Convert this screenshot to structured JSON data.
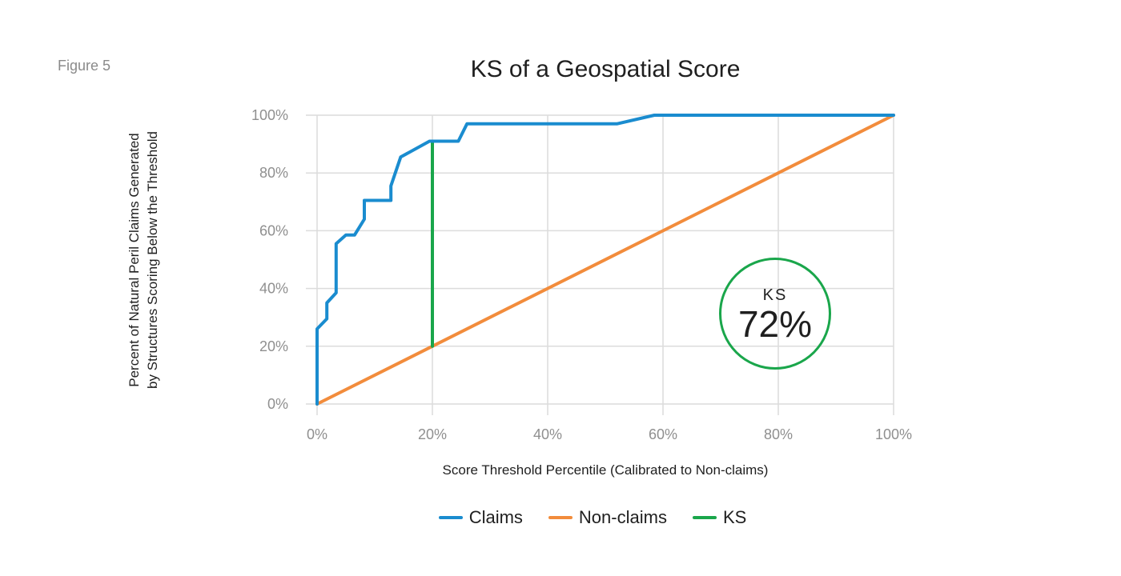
{
  "figure_label": "Figure 5",
  "colors": {
    "claims": "#1a8ccf",
    "non_claims": "#f28c3c",
    "ks": "#1aa64b",
    "grid": "#dcdcdc"
  },
  "badge": {
    "label": "KS",
    "value": "72%"
  },
  "chart_data": {
    "type": "line",
    "title": "KS of a Geospatial Score",
    "xlabel": "Score Threshold Percentile (Calibrated to Non-claims)",
    "ylabel_lines": [
      "Percent of Natural Peril Claims Generated",
      "by Structures Scoring Below the Threshold"
    ],
    "xlim": [
      0,
      100
    ],
    "ylim": [
      0,
      100
    ],
    "x_ticks": [
      0,
      20,
      40,
      60,
      80,
      100
    ],
    "y_ticks": [
      0,
      20,
      40,
      60,
      80,
      100
    ],
    "x_tick_labels": [
      "0%",
      "20%",
      "40%",
      "60%",
      "80%",
      "100%"
    ],
    "y_tick_labels": [
      "0%",
      "20%",
      "40%",
      "60%",
      "80%",
      "100%"
    ],
    "grid": true,
    "legend_position": "bottom-center",
    "series": [
      {
        "name": "Claims",
        "color": "#1a8ccf",
        "points": [
          [
            0,
            0
          ],
          [
            0,
            26
          ],
          [
            1.7,
            29.5
          ],
          [
            1.7,
            35
          ],
          [
            3.3,
            38.5
          ],
          [
            3.3,
            55.5
          ],
          [
            5,
            58.5
          ],
          [
            6.5,
            58.5
          ],
          [
            8.2,
            64
          ],
          [
            8.2,
            70.5
          ],
          [
            12.8,
            70.5
          ],
          [
            12.8,
            75.5
          ],
          [
            14.5,
            85.5
          ],
          [
            19.5,
            91
          ],
          [
            24.5,
            91
          ],
          [
            26,
            97
          ],
          [
            52,
            97
          ],
          [
            58.5,
            100
          ],
          [
            100,
            100
          ]
        ]
      },
      {
        "name": "Non-claims",
        "color": "#f28c3c",
        "points": [
          [
            0,
            0
          ],
          [
            100,
            100
          ]
        ]
      },
      {
        "name": "KS",
        "color": "#1aa64b",
        "points": [
          [
            20,
            20
          ],
          [
            20,
            91
          ]
        ]
      }
    ]
  }
}
